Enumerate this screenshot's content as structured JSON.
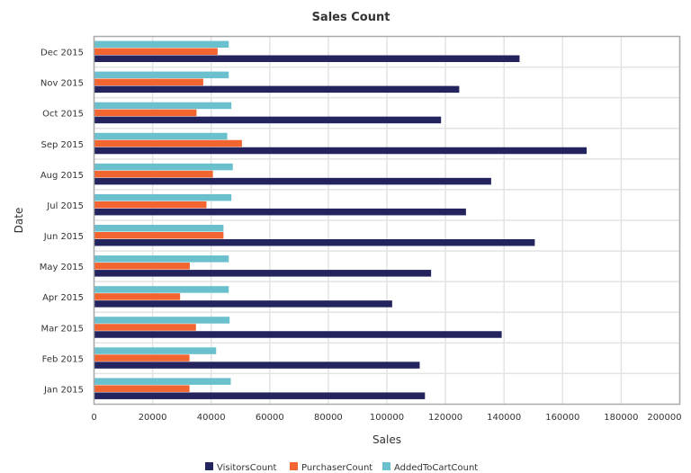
{
  "chart_data": {
    "type": "bar",
    "orientation": "horizontal",
    "title": "Sales Count",
    "xlabel": "Sales",
    "ylabel": "Date",
    "xlim": [
      0,
      200000
    ],
    "xticks": [
      "0",
      "20000",
      "40000",
      "60000",
      "80000",
      "100000",
      "120000",
      "140000",
      "160000",
      "180000",
      "200000"
    ],
    "grid": true,
    "legend": "bottom",
    "categories": [
      "Jan 2015",
      "Feb 2015",
      "Mar 2015",
      "Apr 2015",
      "May 2015",
      "Jun 2015",
      "Jul 2015",
      "Aug 2015",
      "Sep 2015",
      "Oct 2015",
      "Nov 2015",
      "Dec 2015"
    ],
    "series": [
      {
        "name": "VisitorsCount",
        "color": "#23235e",
        "values": [
          113000,
          111200,
          139200,
          101800,
          115100,
          150500,
          127000,
          135600,
          168200,
          118500,
          124700,
          145300
        ]
      },
      {
        "name": "PurchaserCount",
        "color": "#f26430",
        "values": [
          32600,
          32600,
          34800,
          29400,
          32700,
          44200,
          38400,
          40600,
          50500,
          35000,
          37300,
          42200
        ]
      },
      {
        "name": "AddedToCartCount",
        "color": "#6ac0cc",
        "values": [
          46700,
          41700,
          46300,
          46000,
          46000,
          44200,
          46900,
          47400,
          45500,
          46900,
          46000,
          46000
        ]
      }
    ]
  }
}
